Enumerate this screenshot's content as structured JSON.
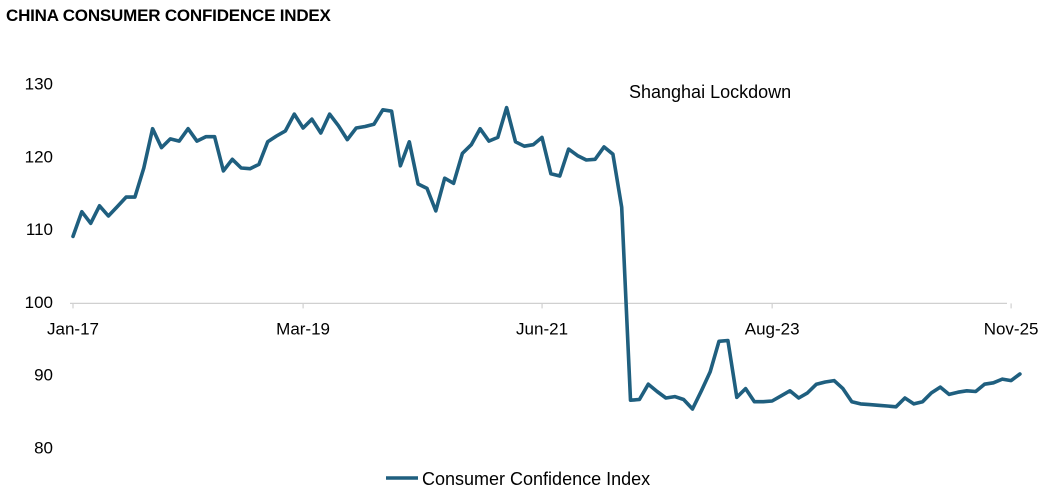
{
  "chart_data": {
    "type": "line",
    "title": "CHINA CONSUMER CONFIDENCE INDEX",
    "xlabel": "",
    "ylabel": "",
    "ylim": [
      80,
      130
    ],
    "yticks": [
      80,
      90,
      100,
      110,
      120,
      130
    ],
    "x_axis_crosses_at": 100,
    "x_ticks": [
      {
        "label": "Jan-17",
        "index": 0
      },
      {
        "label": "Mar-19",
        "index": 26
      },
      {
        "label": "Jun-21",
        "index": 53
      },
      {
        "label": "Aug-23",
        "index": 79
      },
      {
        "label": "Nov-25",
        "index": 106
      }
    ],
    "grid": false,
    "legend_position": "bottom",
    "color": "#1f5f7f",
    "annotations": [
      {
        "text": "Shanghai Lockdown",
        "near_index": 64
      }
    ],
    "series": [
      {
        "name": "Consumer Confidence Index",
        "start": "Jan-17",
        "frequency": "monthly",
        "values": [
          109.2,
          112.6,
          111.0,
          113.4,
          112.0,
          113.3,
          114.6,
          114.6,
          118.6,
          124.0,
          121.4,
          122.6,
          122.3,
          124.0,
          122.3,
          122.9,
          122.9,
          118.2,
          119.8,
          118.6,
          118.5,
          119.1,
          122.2,
          123.0,
          123.7,
          126.0,
          124.1,
          125.3,
          123.4,
          126.0,
          124.4,
          122.5,
          124.1,
          124.3,
          124.6,
          126.6,
          126.4,
          118.9,
          122.2,
          116.4,
          115.8,
          112.7,
          117.2,
          116.5,
          120.6,
          121.8,
          124.0,
          122.3,
          122.8,
          126.9,
          122.2,
          121.6,
          121.8,
          122.8,
          117.8,
          117.5,
          121.2,
          120.3,
          119.7,
          119.8,
          121.5,
          120.5,
          113.2,
          86.7,
          86.8,
          88.9,
          87.9,
          87.0,
          87.2,
          86.8,
          85.5,
          88.0,
          90.6,
          94.8,
          94.9,
          87.1,
          88.3,
          86.5,
          86.5,
          86.6,
          87.3,
          88.0,
          87.0,
          87.7,
          88.9,
          89.2,
          89.4,
          88.3,
          86.5,
          86.2,
          86.1,
          86.0,
          85.9,
          85.8,
          87.0,
          86.2,
          86.5,
          87.7,
          88.5,
          87.5,
          87.8,
          88.0,
          87.9,
          88.9,
          89.1,
          89.6,
          89.4,
          90.3
        ]
      }
    ]
  }
}
